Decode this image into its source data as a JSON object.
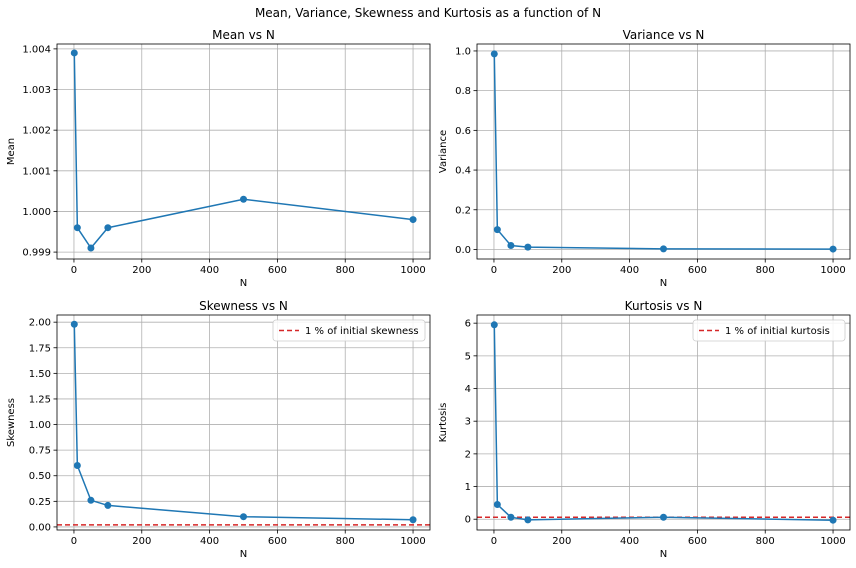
{
  "figure": {
    "suptitle": "Mean, Variance, Skewness and Kurtosis as a function of N"
  },
  "colors": {
    "line": "#1f77b4",
    "ref": "#d62728",
    "grid": "#b0b0b0"
  },
  "chart_data": [
    {
      "type": "line",
      "title": "Mean vs N",
      "xlabel": "N",
      "ylabel": "Mean",
      "x": [
        1,
        10,
        50,
        100,
        500,
        1000
      ],
      "series": [
        {
          "values": [
            1.0039,
            0.9996,
            0.9991,
            0.9996,
            1.0003,
            0.9998
          ]
        }
      ],
      "xlim": [
        -50,
        1050
      ],
      "ylim": [
        0.99883,
        1.00412
      ],
      "xticks": [
        0,
        200,
        400,
        600,
        800,
        1000
      ],
      "yticks": [
        0.999,
        1.0,
        1.001,
        1.002,
        1.003,
        1.004
      ],
      "ytick_labels": [
        "0.999",
        "1.000",
        "1.001",
        "1.002",
        "1.003",
        "1.004"
      ],
      "grid": true
    },
    {
      "type": "line",
      "title": "Variance vs N",
      "xlabel": "N",
      "ylabel": "Variance",
      "x": [
        1,
        10,
        50,
        100,
        500,
        1000
      ],
      "series": [
        {
          "values": [
            0.985,
            0.1,
            0.02,
            0.012,
            0.003,
            0.002
          ]
        }
      ],
      "xlim": [
        -50,
        1050
      ],
      "ylim": [
        -0.048,
        1.035
      ],
      "xticks": [
        0,
        200,
        400,
        600,
        800,
        1000
      ],
      "yticks": [
        0.0,
        0.2,
        0.4,
        0.6,
        0.8,
        1.0
      ],
      "ytick_labels": [
        "0.0",
        "0.2",
        "0.4",
        "0.6",
        "0.8",
        "1.0"
      ],
      "grid": true
    },
    {
      "type": "line",
      "title": "Skewness vs N",
      "xlabel": "N",
      "ylabel": "Skewness",
      "x": [
        1,
        10,
        50,
        100,
        500,
        1000
      ],
      "series": [
        {
          "values": [
            1.98,
            0.6,
            0.26,
            0.21,
            0.1,
            0.07
          ]
        }
      ],
      "reference_line": {
        "y": 0.0198,
        "label": "1 % of initial skewness",
        "style": "dashed"
      },
      "legend": "upper right",
      "xlim": [
        -50,
        1050
      ],
      "ylim": [
        -0.03,
        2.07
      ],
      "xticks": [
        0,
        200,
        400,
        600,
        800,
        1000
      ],
      "yticks": [
        0.0,
        0.25,
        0.5,
        0.75,
        1.0,
        1.25,
        1.5,
        1.75,
        2.0
      ],
      "ytick_labels": [
        "0.00",
        "0.25",
        "0.50",
        "0.75",
        "1.00",
        "1.25",
        "1.50",
        "1.75",
        "2.00"
      ],
      "grid": true
    },
    {
      "type": "line",
      "title": "Kurtosis vs N",
      "xlabel": "N",
      "ylabel": "Kurtosis",
      "x": [
        1,
        10,
        50,
        100,
        500,
        1000
      ],
      "series": [
        {
          "values": [
            5.95,
            0.45,
            0.06,
            -0.02,
            0.06,
            -0.03
          ]
        }
      ],
      "reference_line": {
        "y": 0.06,
        "label": "1 % of initial kurtosis",
        "style": "dashed"
      },
      "legend": "upper right",
      "xlim": [
        -50,
        1050
      ],
      "ylim": [
        -0.33,
        6.25
      ],
      "xticks": [
        0,
        200,
        400,
        600,
        800,
        1000
      ],
      "yticks": [
        0,
        1,
        2,
        3,
        4,
        5,
        6
      ],
      "ytick_labels": [
        "0",
        "1",
        "2",
        "3",
        "4",
        "5",
        "6"
      ],
      "grid": true
    }
  ]
}
